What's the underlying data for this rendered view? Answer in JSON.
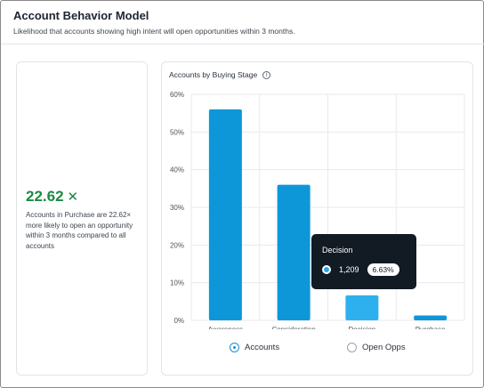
{
  "header": {
    "title": "Account Behavior Model",
    "subtitle": "Likelihood that accounts showing high intent will open opportunities within 3 months."
  },
  "stat": {
    "value": "22.62",
    "icon": "x-icon",
    "description": "Accounts in Purchase are 22.62× more likely to open an opportunity within 3 months compared to all accounts",
    "color": "#1a8a43"
  },
  "chart": {
    "title": "Accounts by Buying Stage",
    "info_icon": "i"
  },
  "legend": {
    "accounts": "Accounts",
    "open_opps": "Open Opps",
    "selected": "Accounts"
  },
  "tooltip": {
    "title": "Decision",
    "value": "1,209",
    "percent": "6.63%"
  },
  "chart_data": {
    "type": "bar",
    "categories": [
      "Awareness",
      "Consideration",
      "Decision",
      "Purchase"
    ],
    "series": [
      {
        "name": "Accounts",
        "values": [
          56,
          36,
          6.63,
          1.3
        ]
      }
    ],
    "yticks": [
      "0%",
      "10%",
      "20%",
      "30%",
      "40%",
      "50%",
      "60%"
    ],
    "ylim": [
      0,
      60
    ],
    "grid": true,
    "highlighted_category": "Decision",
    "colors": {
      "bar": "#0d97d9",
      "highlight": "#2fb0ee",
      "grid": "#e8eaed"
    }
  }
}
